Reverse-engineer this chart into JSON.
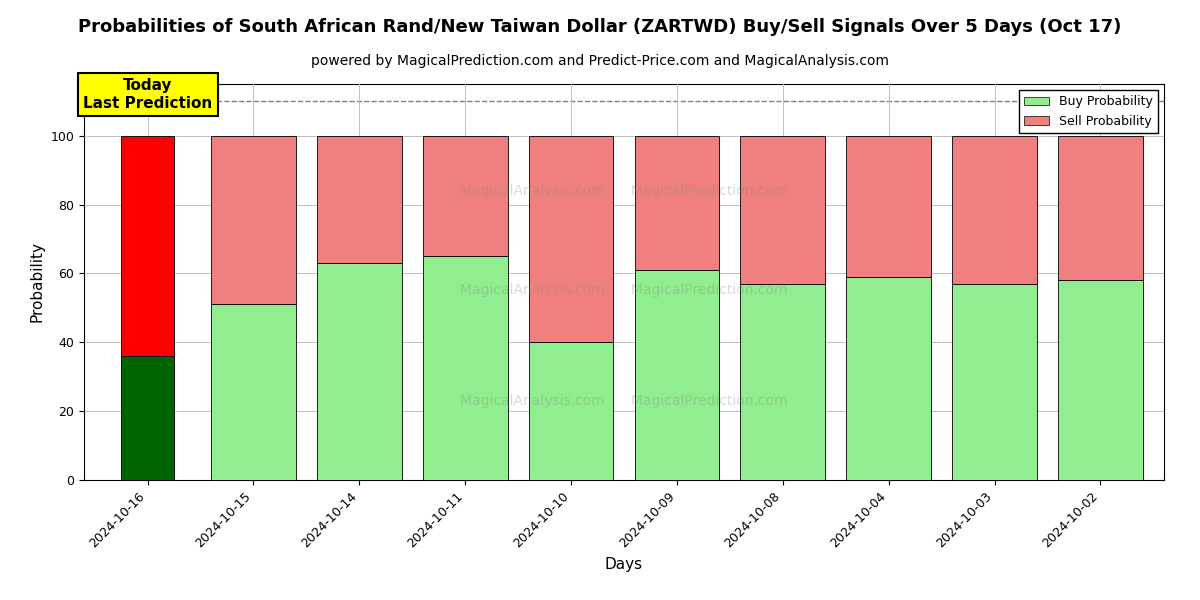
{
  "title": "Probabilities of South African Rand/New Taiwan Dollar (ZARTWD) Buy/Sell Signals Over 5 Days (Oct 17)",
  "subtitle": "powered by MagicalPrediction.com and Predict-Price.com and MagicalAnalysis.com",
  "xlabel": "Days",
  "ylabel": "Probability",
  "dates": [
    "2024-10-16",
    "2024-10-15",
    "2024-10-14",
    "2024-10-11",
    "2024-10-10",
    "2024-10-09",
    "2024-10-08",
    "2024-10-04",
    "2024-10-03",
    "2024-10-02"
  ],
  "buy_values": [
    36,
    51,
    63,
    65,
    40,
    61,
    57,
    59,
    57,
    58
  ],
  "sell_values": [
    64,
    49,
    37,
    35,
    60,
    39,
    43,
    41,
    43,
    42
  ],
  "buy_color_today": "#006400",
  "sell_color_today": "#FF0000",
  "buy_color_rest": "#90EE90",
  "sell_color_rest": "#F08080",
  "today_bar_width": 0.5,
  "other_bar_width": 0.8,
  "ylim": [
    0,
    115
  ],
  "yticks": [
    0,
    20,
    40,
    60,
    80,
    100
  ],
  "dashed_line_y": 110,
  "legend_buy_label": "Buy Probability",
  "legend_sell_label": "Sell Probability",
  "today_annotation": "Today\nLast Prediction",
  "background_color": "#ffffff",
  "grid_color": "#c0c0c0",
  "title_fontsize": 13,
  "subtitle_fontsize": 10,
  "axis_label_fontsize": 11,
  "tick_fontsize": 9
}
